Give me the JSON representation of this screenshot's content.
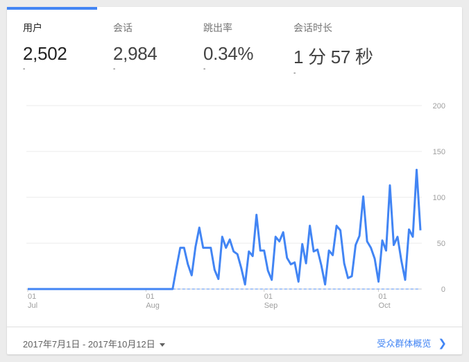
{
  "metrics": [
    {
      "label": "用户",
      "value": "2,502",
      "delta": "-"
    },
    {
      "label": "会话",
      "value": "2,984",
      "delta": "-"
    },
    {
      "label": "跳出率",
      "value": "0.34%",
      "delta": "-"
    },
    {
      "label": "会话时长",
      "value": "1 分 57 秒",
      "delta": "-"
    }
  ],
  "footer": {
    "date_range": "2017年7月1日 - 2017年10月12日",
    "link": "受众群体概览"
  },
  "colors": {
    "accent": "#4285f4",
    "comparison": "#8ab4f8"
  },
  "chart_data": {
    "type": "line",
    "title": "",
    "xlabel": "",
    "ylabel": "",
    "ylim": [
      0,
      200
    ],
    "yticks": [
      "200",
      "150",
      "100",
      "50",
      "0"
    ],
    "y_axis_position": "right",
    "grid": true,
    "xticks": [
      {
        "date": "2017-07-01",
        "day": "01",
        "month": "Jul"
      },
      {
        "date": "2017-08-01",
        "day": "01",
        "month": "Aug"
      },
      {
        "date": "2017-09-01",
        "day": "01",
        "month": "Sep"
      },
      {
        "date": "2017-10-01",
        "day": "01",
        "month": "Oct"
      }
    ],
    "x": [
      "2017-07-01",
      "2017-07-02",
      "2017-07-03",
      "2017-07-04",
      "2017-07-05",
      "2017-07-06",
      "2017-07-07",
      "2017-07-08",
      "2017-07-09",
      "2017-07-10",
      "2017-07-11",
      "2017-07-12",
      "2017-07-13",
      "2017-07-14",
      "2017-07-15",
      "2017-07-16",
      "2017-07-17",
      "2017-07-18",
      "2017-07-19",
      "2017-07-20",
      "2017-07-21",
      "2017-07-22",
      "2017-07-23",
      "2017-07-24",
      "2017-07-25",
      "2017-07-26",
      "2017-07-27",
      "2017-07-28",
      "2017-07-29",
      "2017-07-30",
      "2017-07-31",
      "2017-08-01",
      "2017-08-02",
      "2017-08-03",
      "2017-08-04",
      "2017-08-05",
      "2017-08-06",
      "2017-08-07",
      "2017-08-08",
      "2017-08-09",
      "2017-08-10",
      "2017-08-11",
      "2017-08-12",
      "2017-08-13",
      "2017-08-14",
      "2017-08-15",
      "2017-08-16",
      "2017-08-17",
      "2017-08-18",
      "2017-08-19",
      "2017-08-20",
      "2017-08-21",
      "2017-08-22",
      "2017-08-23",
      "2017-08-24",
      "2017-08-25",
      "2017-08-26",
      "2017-08-27",
      "2017-08-28",
      "2017-08-29",
      "2017-08-30",
      "2017-08-31",
      "2017-09-01",
      "2017-09-02",
      "2017-09-03",
      "2017-09-04",
      "2017-09-05",
      "2017-09-06",
      "2017-09-07",
      "2017-09-08",
      "2017-09-09",
      "2017-09-10",
      "2017-09-11",
      "2017-09-12",
      "2017-09-13",
      "2017-09-14",
      "2017-09-15",
      "2017-09-16",
      "2017-09-17",
      "2017-09-18",
      "2017-09-19",
      "2017-09-20",
      "2017-09-21",
      "2017-09-22",
      "2017-09-23",
      "2017-09-24",
      "2017-09-25",
      "2017-09-26",
      "2017-09-27",
      "2017-09-28",
      "2017-09-29",
      "2017-09-30",
      "2017-10-01",
      "2017-10-02",
      "2017-10-03",
      "2017-10-04",
      "2017-10-05",
      "2017-10-06",
      "2017-10-07",
      "2017-10-08",
      "2017-10-09",
      "2017-10-10",
      "2017-10-11",
      "2017-10-12"
    ],
    "series": [
      {
        "style": "solid",
        "values": [
          0,
          0,
          0,
          0,
          0,
          0,
          0,
          0,
          0,
          0,
          0,
          0,
          0,
          0,
          0,
          0,
          0,
          0,
          0,
          0,
          0,
          0,
          0,
          0,
          0,
          0,
          0,
          0,
          0,
          0,
          0,
          0,
          0,
          0,
          0,
          0,
          0,
          0,
          0,
          23,
          45,
          45,
          27,
          15,
          46,
          67,
          45,
          45,
          45,
          21,
          11,
          57,
          45,
          54,
          41,
          38,
          23,
          5,
          41,
          36,
          81,
          42,
          42,
          20,
          10,
          57,
          52,
          62,
          34,
          27,
          29,
          8,
          49,
          28,
          69,
          41,
          43,
          26,
          5,
          42,
          37,
          69,
          64,
          28,
          12,
          14,
          48,
          58,
          101,
          52,
          45,
          33,
          8,
          53,
          42,
          113,
          48,
          57,
          31,
          10,
          65,
          57,
          130,
          64
        ]
      },
      {
        "style": "dashed",
        "values": [
          null,
          null,
          null,
          null,
          null,
          null,
          null,
          null,
          null,
          null,
          null,
          null,
          null,
          null,
          null,
          null,
          null,
          null,
          null,
          null,
          null,
          null,
          null,
          null,
          null,
          null,
          null,
          null,
          null,
          null,
          null,
          null,
          null,
          null,
          null,
          null,
          null,
          null,
          0,
          0,
          0,
          0,
          0,
          0,
          0,
          0,
          0,
          0,
          0,
          0,
          0,
          0,
          0,
          0,
          0,
          0,
          0,
          0,
          0,
          0,
          0,
          0,
          0,
          0,
          0,
          0,
          0,
          0,
          0,
          0,
          0,
          0,
          0,
          0,
          0,
          0,
          0,
          0,
          0,
          0,
          0,
          0,
          0,
          0,
          0,
          0,
          0,
          0,
          0,
          0,
          0,
          0,
          0,
          0,
          0,
          0,
          0,
          0,
          0,
          0,
          0,
          0,
          0,
          0
        ]
      }
    ]
  }
}
